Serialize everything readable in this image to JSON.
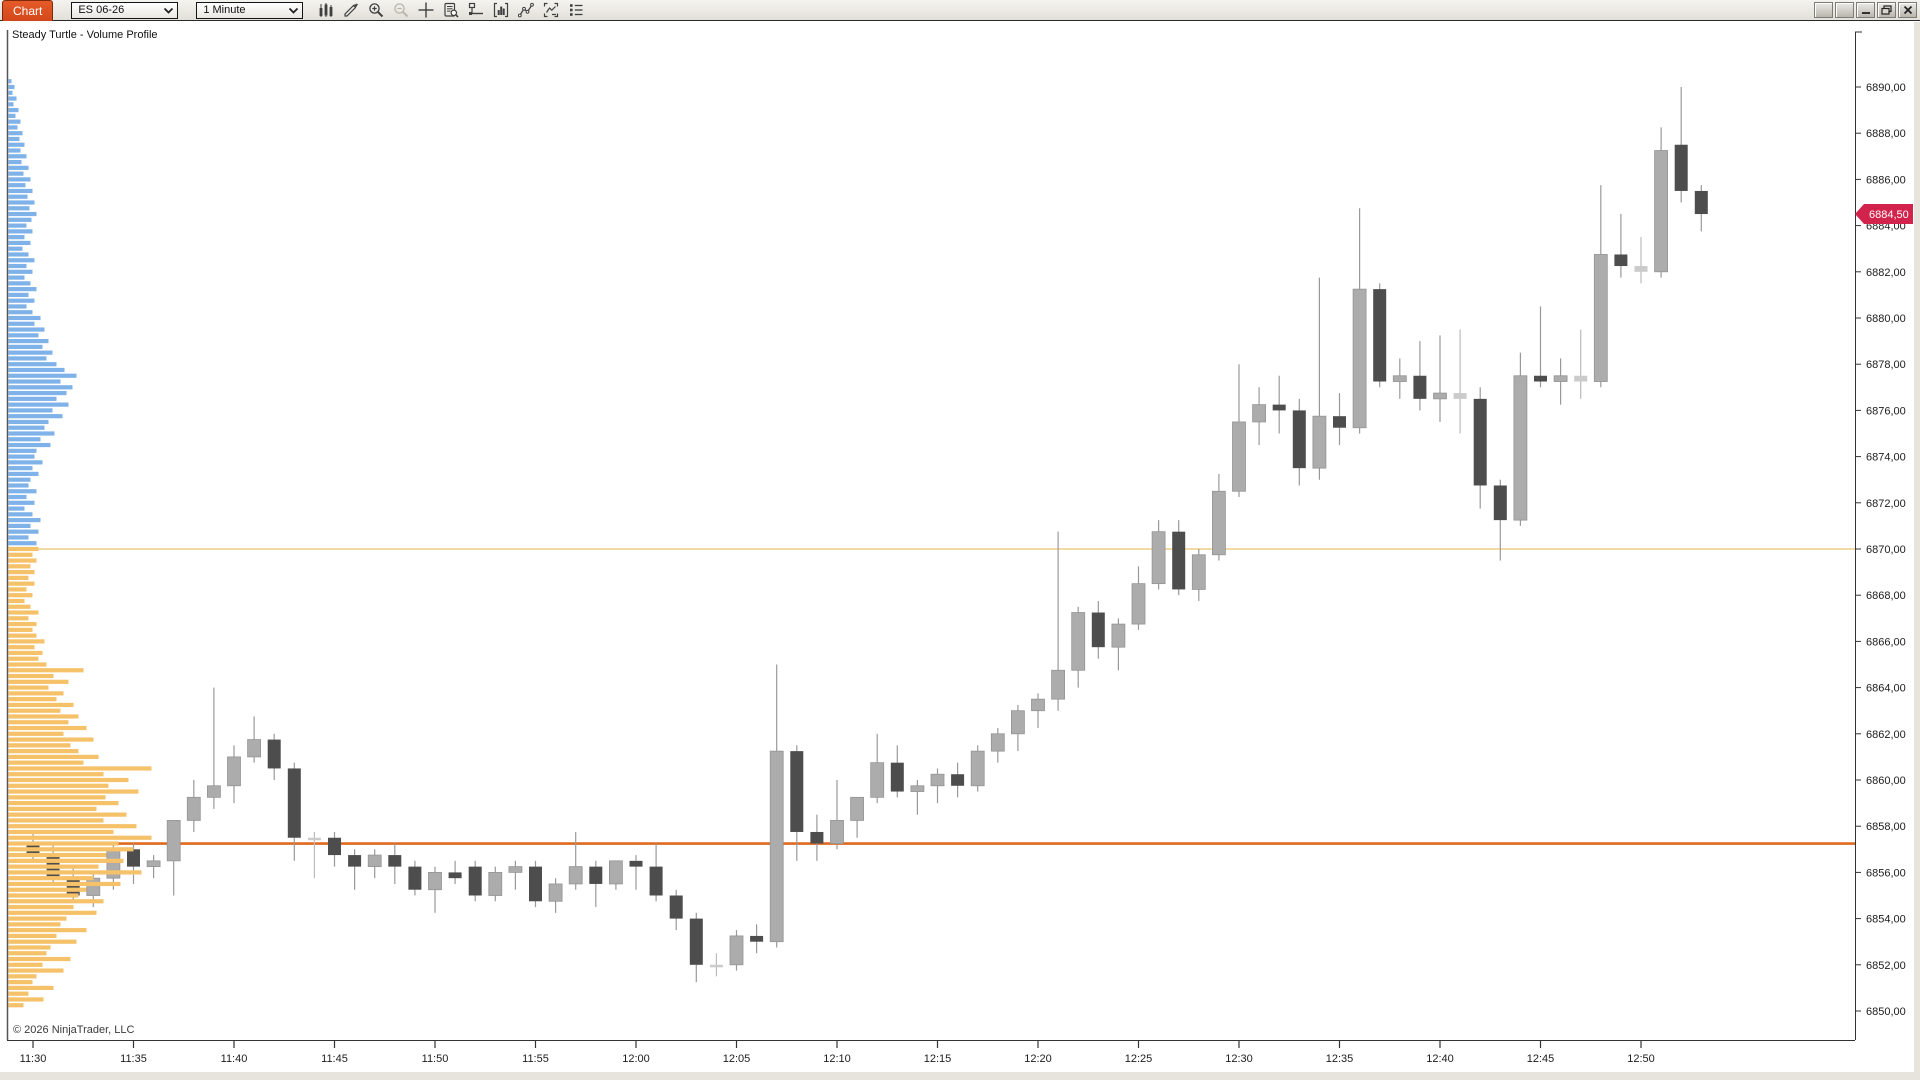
{
  "window": {
    "tab_label": "Chart",
    "instrument": "ES 06-26",
    "interval": "1 Minute",
    "window_buttons": [
      "instrument-link",
      "interval-link",
      "minimize",
      "restore",
      "close"
    ]
  },
  "toolbar": {
    "icons": [
      "chart-style-icon",
      "drawing-pencil-icon",
      "zoom-in-icon",
      "zoom-out-icon",
      "crosshair-icon",
      "data-box-icon",
      "price-levels-icon",
      "indicators-icon",
      "drawing-tools-icon",
      "snapshot-icon",
      "properties-icon"
    ]
  },
  "chart": {
    "title": "Steady Turtle - Volume Profile",
    "copyright": "© 2026 NinjaTrader, LLC",
    "last_price_label": "6884,50",
    "colors": {
      "tab_accent": "#DD4E1E",
      "price_badge": "#D1234B",
      "candle_up": "#ACACAC",
      "candle_down": "#4D4D4D",
      "candle_pale": "#CBCBCB",
      "wick": "#999999",
      "profile_above": "#7FB2E8",
      "profile_below": "#F5C169",
      "level_yellow": "#E9C56B",
      "level_orange": "#DF6A1E"
    }
  },
  "chart_data": {
    "type": "candlestick",
    "title": "Steady Turtle - Volume Profile",
    "x_axis": {
      "labels": [
        "11:30",
        "11:35",
        "11:40",
        "11:45",
        "11:50",
        "11:55",
        "12:00",
        "12:05",
        "12:10",
        "12:15",
        "12:20",
        "12:25",
        "12:30",
        "12:35",
        "12:40",
        "12:45",
        "12:50"
      ],
      "minutes_per_label": 5
    },
    "y_axis": {
      "max_label": 6890,
      "min_label": 6850,
      "step": 2,
      "decimal_style": "comma"
    },
    "last_price": 6884.5,
    "levels": [
      {
        "name": "upper-reference-line",
        "price": 6870.0,
        "color": "#E9C56B",
        "width": 1.2
      },
      {
        "name": "anchor-price-line",
        "price": 6857.25,
        "color": "#DF6A1E",
        "width": 2.6
      }
    ],
    "candles": [
      [
        "11:30",
        6857.25,
        6857.75,
        6856.5,
        6856.75,
        "d"
      ],
      [
        "11:31",
        6856.75,
        6857.25,
        6855.5,
        6855.75,
        "d"
      ],
      [
        "11:32",
        6855.75,
        6856.25,
        6854.75,
        6855.0,
        "d"
      ],
      [
        "11:33",
        6855.0,
        6856.0,
        6854.5,
        6855.75,
        "u"
      ],
      [
        "11:34",
        6855.75,
        6857.25,
        6855.25,
        6857.0,
        "u"
      ],
      [
        "11:35",
        6857.0,
        6857.25,
        6855.5,
        6856.25,
        "d"
      ],
      [
        "11:36",
        6856.25,
        6856.75,
        6855.75,
        6856.5,
        "u"
      ],
      [
        "11:37",
        6856.5,
        6858.25,
        6855.0,
        6858.25,
        "u"
      ],
      [
        "11:38",
        6858.25,
        6860.0,
        6857.75,
        6859.25,
        "u"
      ],
      [
        "11:39",
        6859.25,
        6864.0,
        6858.75,
        6859.75,
        "u"
      ],
      [
        "11:40",
        6859.75,
        6861.5,
        6859.0,
        6861.0,
        "u"
      ],
      [
        "11:41",
        6861.0,
        6862.75,
        6860.75,
        6861.75,
        "u"
      ],
      [
        "11:42",
        6861.75,
        6862.0,
        6860.0,
        6860.5,
        "d"
      ],
      [
        "11:43",
        6860.5,
        6860.75,
        6856.5,
        6857.5,
        "d"
      ],
      [
        "11:44",
        6857.5,
        6857.75,
        6855.75,
        6857.5,
        "p"
      ],
      [
        "11:45",
        6857.5,
        6857.75,
        6856.25,
        6856.75,
        "d"
      ],
      [
        "11:46",
        6856.75,
        6857.0,
        6855.25,
        6856.25,
        "d"
      ],
      [
        "11:47",
        6856.25,
        6857.0,
        6855.75,
        6856.75,
        "u"
      ],
      [
        "11:48",
        6856.75,
        6857.25,
        6855.5,
        6856.25,
        "d"
      ],
      [
        "11:49",
        6856.25,
        6856.5,
        6855.0,
        6855.25,
        "d"
      ],
      [
        "11:50",
        6855.25,
        6856.25,
        6854.25,
        6856.0,
        "u"
      ],
      [
        "11:51",
        6856.0,
        6856.5,
        6855.5,
        6855.75,
        "d"
      ],
      [
        "11:52",
        6856.25,
        6856.5,
        6854.75,
        6855.0,
        "d"
      ],
      [
        "11:53",
        6855.0,
        6856.25,
        6854.75,
        6856.0,
        "u"
      ],
      [
        "11:54",
        6856.0,
        6856.5,
        6855.25,
        6856.25,
        "u"
      ],
      [
        "11:55",
        6856.25,
        6856.5,
        6854.5,
        6854.75,
        "d"
      ],
      [
        "11:56",
        6854.75,
        6855.75,
        6854.25,
        6855.5,
        "u"
      ],
      [
        "11:57",
        6855.5,
        6857.75,
        6855.25,
        6856.25,
        "u"
      ],
      [
        "11:58",
        6856.25,
        6856.5,
        6854.5,
        6855.5,
        "d"
      ],
      [
        "11:59",
        6855.5,
        6856.5,
        6855.25,
        6856.5,
        "u"
      ],
      [
        "12:00",
        6856.5,
        6856.75,
        6855.25,
        6856.25,
        "d"
      ],
      [
        "12:01",
        6856.25,
        6857.25,
        6854.75,
        6855.0,
        "d"
      ],
      [
        "12:02",
        6855.0,
        6855.25,
        6853.5,
        6854.0,
        "d"
      ],
      [
        "12:03",
        6854.0,
        6854.25,
        6851.25,
        6852.0,
        "d"
      ],
      [
        "12:04",
        6852.0,
        6852.5,
        6851.5,
        6852.0,
        "p"
      ],
      [
        "12:05",
        6852.0,
        6853.5,
        6851.75,
        6853.25,
        "u"
      ],
      [
        "12:06",
        6853.25,
        6853.75,
        6852.5,
        6853.0,
        "d"
      ],
      [
        "12:07",
        6853.0,
        6865.0,
        6852.75,
        6861.25,
        "u"
      ],
      [
        "12:08",
        6861.25,
        6861.5,
        6856.5,
        6857.75,
        "d"
      ],
      [
        "12:09",
        6857.75,
        6858.5,
        6856.5,
        6857.25,
        "d"
      ],
      [
        "12:10",
        6857.25,
        6860.0,
        6857.0,
        6858.25,
        "u"
      ],
      [
        "12:11",
        6858.25,
        6859.25,
        6857.5,
        6859.25,
        "u"
      ],
      [
        "12:12",
        6859.25,
        6862.0,
        6859.0,
        6860.75,
        "u"
      ],
      [
        "12:13",
        6860.75,
        6861.5,
        6859.25,
        6859.5,
        "d"
      ],
      [
        "12:14",
        6859.5,
        6860.0,
        6858.5,
        6859.75,
        "u"
      ],
      [
        "12:15",
        6859.75,
        6860.5,
        6859.0,
        6860.25,
        "u"
      ],
      [
        "12:16",
        6860.25,
        6860.75,
        6859.25,
        6859.75,
        "d"
      ],
      [
        "12:17",
        6859.75,
        6861.5,
        6859.5,
        6861.25,
        "u"
      ],
      [
        "12:18",
        6861.25,
        6862.25,
        6860.75,
        6862.0,
        "u"
      ],
      [
        "12:19",
        6862.0,
        6863.25,
        6861.25,
        6863.0,
        "u"
      ],
      [
        "12:20",
        6863.0,
        6863.75,
        6862.25,
        6863.5,
        "u"
      ],
      [
        "12:21",
        6863.5,
        6870.75,
        6863.0,
        6864.75,
        "u"
      ],
      [
        "12:22",
        6864.75,
        6867.5,
        6864.0,
        6867.25,
        "u"
      ],
      [
        "12:23",
        6867.25,
        6867.75,
        6865.25,
        6865.75,
        "d"
      ],
      [
        "12:24",
        6865.75,
        6867.0,
        6864.75,
        6866.75,
        "u"
      ],
      [
        "12:25",
        6866.75,
        6869.25,
        6866.5,
        6868.5,
        "u"
      ],
      [
        "12:26",
        6868.5,
        6871.25,
        6868.25,
        6870.75,
        "u"
      ],
      [
        "12:27",
        6870.75,
        6871.25,
        6868.0,
        6868.25,
        "d"
      ],
      [
        "12:28",
        6868.25,
        6870.0,
        6867.75,
        6869.75,
        "u"
      ],
      [
        "12:29",
        6869.75,
        6873.25,
        6869.5,
        6872.5,
        "u"
      ],
      [
        "12:30",
        6872.5,
        6878.0,
        6872.25,
        6875.5,
        "u"
      ],
      [
        "12:31",
        6875.5,
        6877.0,
        6874.5,
        6876.25,
        "u"
      ],
      [
        "12:32",
        6876.25,
        6877.5,
        6875.0,
        6876.0,
        "d"
      ],
      [
        "12:33",
        6876.0,
        6876.5,
        6872.75,
        6873.5,
        "d"
      ],
      [
        "12:34",
        6873.5,
        6881.75,
        6873.0,
        6875.75,
        "u"
      ],
      [
        "12:35",
        6875.75,
        6876.75,
        6874.5,
        6875.25,
        "d"
      ],
      [
        "12:36",
        6875.25,
        6884.75,
        6875.0,
        6881.25,
        "u"
      ],
      [
        "12:37",
        6881.25,
        6881.5,
        6877.0,
        6877.25,
        "d"
      ],
      [
        "12:38",
        6877.25,
        6878.25,
        6876.5,
        6877.5,
        "u"
      ],
      [
        "12:39",
        6877.5,
        6879.0,
        6876.0,
        6876.5,
        "d"
      ],
      [
        "12:40",
        6876.5,
        6879.25,
        6875.5,
        6876.75,
        "u"
      ],
      [
        "12:41",
        6876.75,
        6879.5,
        6875.0,
        6876.5,
        "p"
      ],
      [
        "12:42",
        6876.5,
        6877.0,
        6871.75,
        6872.75,
        "d"
      ],
      [
        "12:43",
        6872.75,
        6873.0,
        6869.5,
        6871.25,
        "d"
      ],
      [
        "12:44",
        6871.25,
        6878.5,
        6871.0,
        6877.5,
        "u"
      ],
      [
        "12:45",
        6877.5,
        6880.5,
        6877.0,
        6877.25,
        "d"
      ],
      [
        "12:46",
        6877.25,
        6878.25,
        6876.25,
        6877.5,
        "u"
      ],
      [
        "12:47",
        6877.5,
        6879.5,
        6876.5,
        6877.25,
        "p"
      ],
      [
        "12:48",
        6877.25,
        6885.75,
        6877.0,
        6882.75,
        "u"
      ],
      [
        "12:49",
        6882.75,
        6884.5,
        6881.75,
        6882.25,
        "d"
      ],
      [
        "12:50",
        6882.25,
        6883.5,
        6881.5,
        6882.0,
        "p"
      ],
      [
        "12:51",
        6882.0,
        6888.25,
        6881.75,
        6887.25,
        "u"
      ],
      [
        "12:52",
        6887.5,
        6890.0,
        6885.0,
        6885.5,
        "d"
      ],
      [
        "12:53",
        6885.5,
        6885.75,
        6883.75,
        6884.5,
        "d"
      ]
    ],
    "volume_profile": {
      "price_top": 6890.25,
      "price_step": 0.25,
      "split_price": 6870.0,
      "above_color": "#7FB2E8",
      "below_color": "#F5C169",
      "widths": [
        3,
        6,
        4,
        8,
        5,
        10,
        7,
        12,
        9,
        14,
        11,
        16,
        12,
        18,
        13,
        20,
        15,
        22,
        17,
        24,
        19,
        26,
        21,
        28,
        23,
        18,
        24,
        16,
        22,
        14,
        20,
        26,
        18,
        24,
        16,
        22,
        28,
        20,
        26,
        18,
        24,
        32,
        26,
        36,
        30,
        40,
        34,
        44,
        38,
        48,
        56,
        68,
        52,
        64,
        58,
        48,
        60,
        44,
        54,
        40,
        36,
        46,
        32,
        42,
        28,
        26,
        34,
        24,
        30,
        22,
        20,
        28,
        18,
        26,
        16,
        24,
        32,
        22,
        30,
        20,
        28,
        30,
        24,
        28,
        22,
        26,
        20,
        26,
        18,
        24,
        16,
        22,
        30,
        20,
        28,
        24,
        28,
        36,
        26,
        34,
        30,
        38,
        75,
        45,
        60,
        40,
        55,
        48,
        65,
        52,
        70,
        60,
        78,
        55,
        85,
        62,
        70,
        90,
        75,
        143,
        95,
        120,
        100,
        130,
        97,
        110,
        88,
        118,
        95,
        128,
        105,
        143,
        110,
        125,
        98,
        115,
        90,
        133,
        85,
        112,
        78,
        70,
        95,
        65,
        88,
        58,
        52,
        78,
        48,
        68,
        42,
        38,
        62,
        34,
        55,
        28,
        24,
        45,
        20,
        35,
        15
      ]
    }
  }
}
